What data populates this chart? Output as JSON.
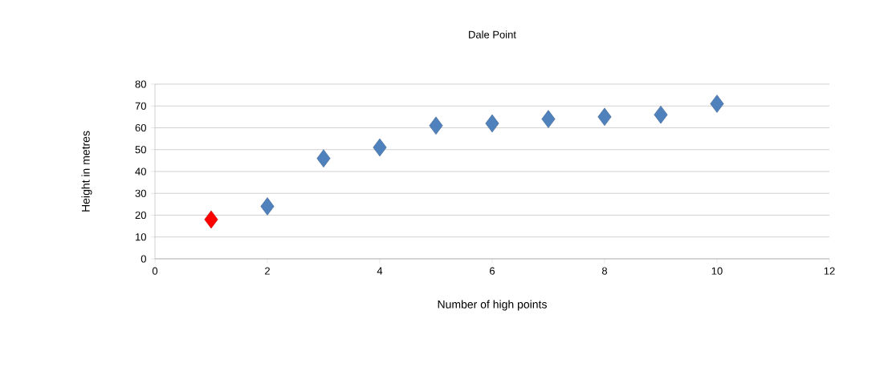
{
  "chart_data": {
    "type": "scatter",
    "title": "Dale Point",
    "xlabel": "Number of high points",
    "ylabel": "Height in metres",
    "x": [
      1,
      2,
      3,
      4,
      5,
      6,
      7,
      8,
      9,
      10
    ],
    "values": [
      18,
      24,
      46,
      51,
      61,
      62,
      64,
      65,
      66,
      71
    ],
    "color": "#4f81bd",
    "colors": [
      "#ff0000",
      null,
      null,
      null,
      null,
      null,
      null,
      null,
      null,
      null
    ],
    "xlim": [
      0,
      12
    ],
    "xticks": [
      0,
      2,
      4,
      6,
      8,
      10,
      12
    ],
    "ylim": [
      0,
      80
    ],
    "yticks": [
      0,
      10,
      20,
      30,
      40,
      50,
      60,
      70,
      80
    ],
    "grid": "y",
    "marker": "diamond"
  }
}
